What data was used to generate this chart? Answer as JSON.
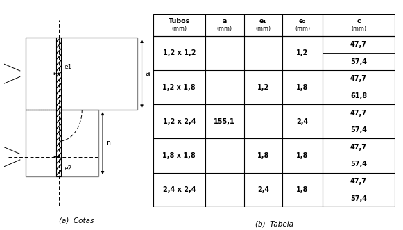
{
  "subcap_a": "(a)  Cotas",
  "subcap_b": "(b)  Tabela",
  "a_value": "155,1",
  "tubos": [
    "1,2 x 1,2",
    "1,2 x 1,8",
    "1,2 x 2,4",
    "1,8 x 1,8",
    "2,4 x 2,4"
  ],
  "e1_vals": [
    "",
    "1,2",
    "",
    "1,8",
    "2,4"
  ],
  "e2_vals": [
    "1,2",
    "1,8",
    "2,4",
    "1,8",
    "1,8"
  ],
  "c_vals": [
    [
      "47,7",
      "57,4"
    ],
    [
      "47,7",
      "61,8"
    ],
    [
      "47,7",
      "57,4"
    ],
    [
      "47,7",
      "57,4"
    ],
    [
      "47,7",
      "57,4"
    ]
  ],
  "background_color": "#ffffff",
  "line_color": "#000000",
  "gray_color": "#888888"
}
